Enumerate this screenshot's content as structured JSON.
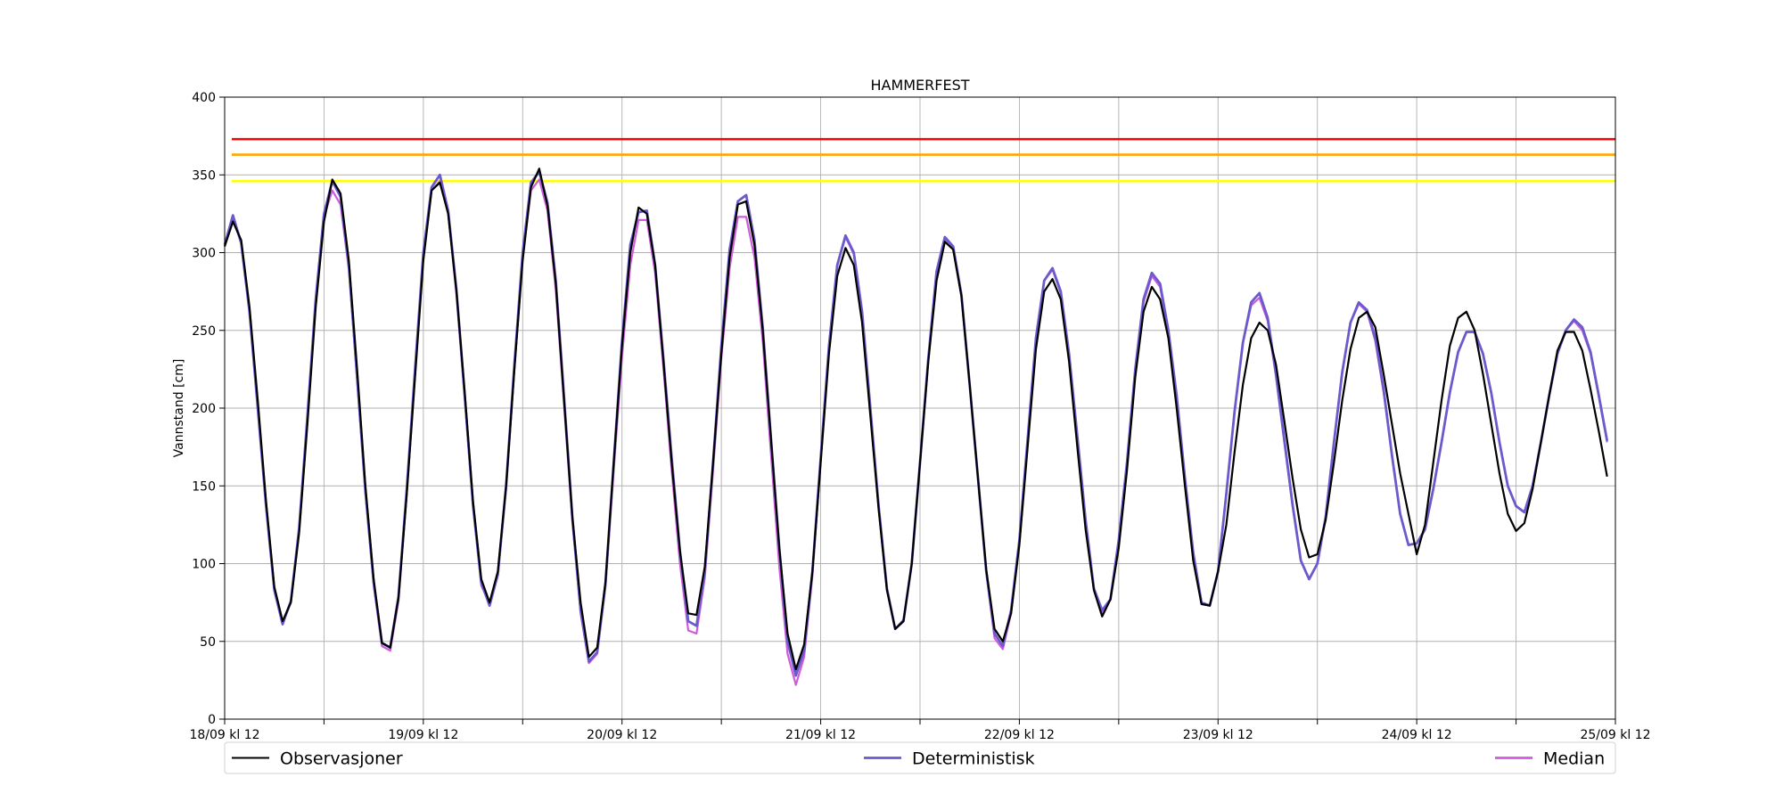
{
  "chart_data": {
    "type": "line",
    "title": "HAMMERFEST",
    "xlabel": "",
    "ylabel": "Vannstand [cm]",
    "ylim": [
      0,
      400
    ],
    "yticks": [
      0,
      50,
      100,
      150,
      200,
      250,
      300,
      350,
      400
    ],
    "x_range": [
      "18/09 kl 12",
      "25/09 kl 12"
    ],
    "x_start": "2024-09-18T12:00",
    "x_step_hours": 1,
    "xtick_labels": [
      "18/09 kl 12",
      "19/09 kl 12",
      "20/09 kl 12",
      "21/09 kl 12",
      "22/09 kl 12",
      "23/09 kl 12",
      "24/09 kl 12",
      "25/09 kl 12"
    ],
    "grid": true,
    "legend_position": "bottom",
    "thresholds": [
      {
        "value": 373,
        "color": "#ff0000"
      },
      {
        "value": 363,
        "color": "#ffa500"
      },
      {
        "value": 346,
        "color": "#ffff00"
      }
    ],
    "series": [
      {
        "name": "Observasjoner",
        "color": "#000000",
        "values": [
          304,
          320,
          308,
          265,
          205,
          140,
          85,
          63,
          75,
          120,
          190,
          265,
          320,
          347,
          338,
          295,
          225,
          150,
          90,
          49,
          46,
          78,
          145,
          220,
          295,
          340,
          345,
          325,
          275,
          210,
          140,
          90,
          75,
          95,
          150,
          225,
          295,
          342,
          354,
          330,
          280,
          205,
          130,
          75,
          40,
          46,
          88,
          165,
          240,
          300,
          329,
          325,
          292,
          230,
          165,
          108,
          68,
          67,
          98,
          165,
          235,
          297,
          331,
          333,
          305,
          250,
          180,
          110,
          55,
          32,
          48,
          95,
          165,
          235,
          285,
          303,
          292,
          255,
          195,
          135,
          83,
          58,
          63,
          100,
          165,
          230,
          282,
          307,
          302,
          272,
          215,
          155,
          96,
          58,
          50,
          68,
          112,
          175,
          238,
          275,
          283,
          270,
          230,
          175,
          122,
          83,
          66,
          77,
          110,
          160,
          220,
          262,
          278,
          270,
          245,
          200,
          150,
          102,
          74,
          73,
          95,
          125,
          172,
          215,
          245,
          255,
          250,
          228,
          192,
          155,
          122,
          104,
          106,
          128,
          165,
          205,
          238,
          258,
          262,
          252,
          222,
          190,
          158,
          132,
          106,
          125,
          165,
          205,
          240,
          258,
          262,
          250,
          222,
          190,
          158,
          132,
          121,
          126,
          148,
          178,
          208,
          237,
          249,
          249,
          237,
          212,
          185,
          156
        ]
      },
      {
        "name": "Deterministisk",
        "color": "#6a5acd",
        "values": [
          305,
          324,
          306,
          262,
          200,
          137,
          83,
          61,
          76,
          123,
          195,
          270,
          325,
          346,
          336,
          292,
          220,
          147,
          88,
          49,
          46,
          79,
          148,
          225,
          300,
          342,
          350,
          327,
          276,
          208,
          138,
          88,
          73,
          93,
          150,
          228,
          300,
          345,
          352,
          332,
          282,
          207,
          130,
          70,
          37,
          43,
          87,
          165,
          243,
          305,
          326,
          327,
          292,
          232,
          168,
          108,
          63,
          60,
          95,
          165,
          240,
          302,
          333,
          337,
          308,
          252,
          180,
          110,
          50,
          28,
          44,
          95,
          168,
          240,
          292,
          311,
          300,
          262,
          200,
          137,
          84,
          58,
          63,
          100,
          165,
          232,
          288,
          310,
          304,
          273,
          215,
          155,
          95,
          55,
          47,
          70,
          115,
          180,
          245,
          282,
          290,
          275,
          235,
          182,
          128,
          84,
          70,
          77,
          115,
          165,
          225,
          270,
          287,
          280,
          250,
          208,
          155,
          107,
          75,
          73,
          95,
          145,
          198,
          242,
          268,
          274,
          258,
          222,
          180,
          138,
          102,
          90,
          100,
          130,
          178,
          223,
          255,
          268,
          263,
          245,
          212,
          170,
          132,
          112,
          113,
          122,
          148,
          178,
          210,
          236,
          249,
          249,
          235,
          210,
          178,
          150,
          137,
          133,
          150,
          178,
          208,
          235,
          250,
          257,
          252,
          236,
          208,
          179
        ]
      },
      {
        "name": "Median",
        "color": "#cd5bdc",
        "values": [
          304,
          322,
          306,
          262,
          200,
          137,
          83,
          62,
          76,
          122,
          193,
          268,
          323,
          340,
          331,
          289,
          218,
          145,
          86,
          47,
          44,
          76,
          145,
          222,
          297,
          340,
          346,
          325,
          273,
          206,
          136,
          86,
          74,
          93,
          148,
          225,
          297,
          340,
          347,
          327,
          276,
          202,
          127,
          68,
          36,
          42,
          85,
          160,
          233,
          292,
          321,
          321,
          287,
          226,
          160,
          100,
          57,
          55,
          91,
          160,
          232,
          290,
          323,
          323,
          297,
          243,
          170,
          98,
          42,
          22,
          40,
          92,
          167,
          240,
          292,
          310,
          299,
          262,
          200,
          137,
          84,
          58,
          64,
          100,
          165,
          232,
          288,
          309,
          303,
          272,
          215,
          155,
          94,
          52,
          45,
          68,
          115,
          180,
          245,
          282,
          289,
          274,
          234,
          182,
          128,
          84,
          68,
          77,
          115,
          165,
          225,
          268,
          285,
          278,
          248,
          205,
          154,
          106,
          74,
          73,
          95,
          145,
          198,
          242,
          266,
          271,
          256,
          220,
          178,
          137,
          102,
          90,
          100,
          130,
          178,
          223,
          255,
          267,
          262,
          243,
          210,
          170,
          132,
          112,
          113,
          122,
          148,
          178,
          210,
          236,
          249,
          249,
          235,
          210,
          178,
          150,
          137,
          133,
          150,
          178,
          208,
          235,
          250,
          256,
          250,
          235,
          207,
          178
        ]
      }
    ]
  }
}
